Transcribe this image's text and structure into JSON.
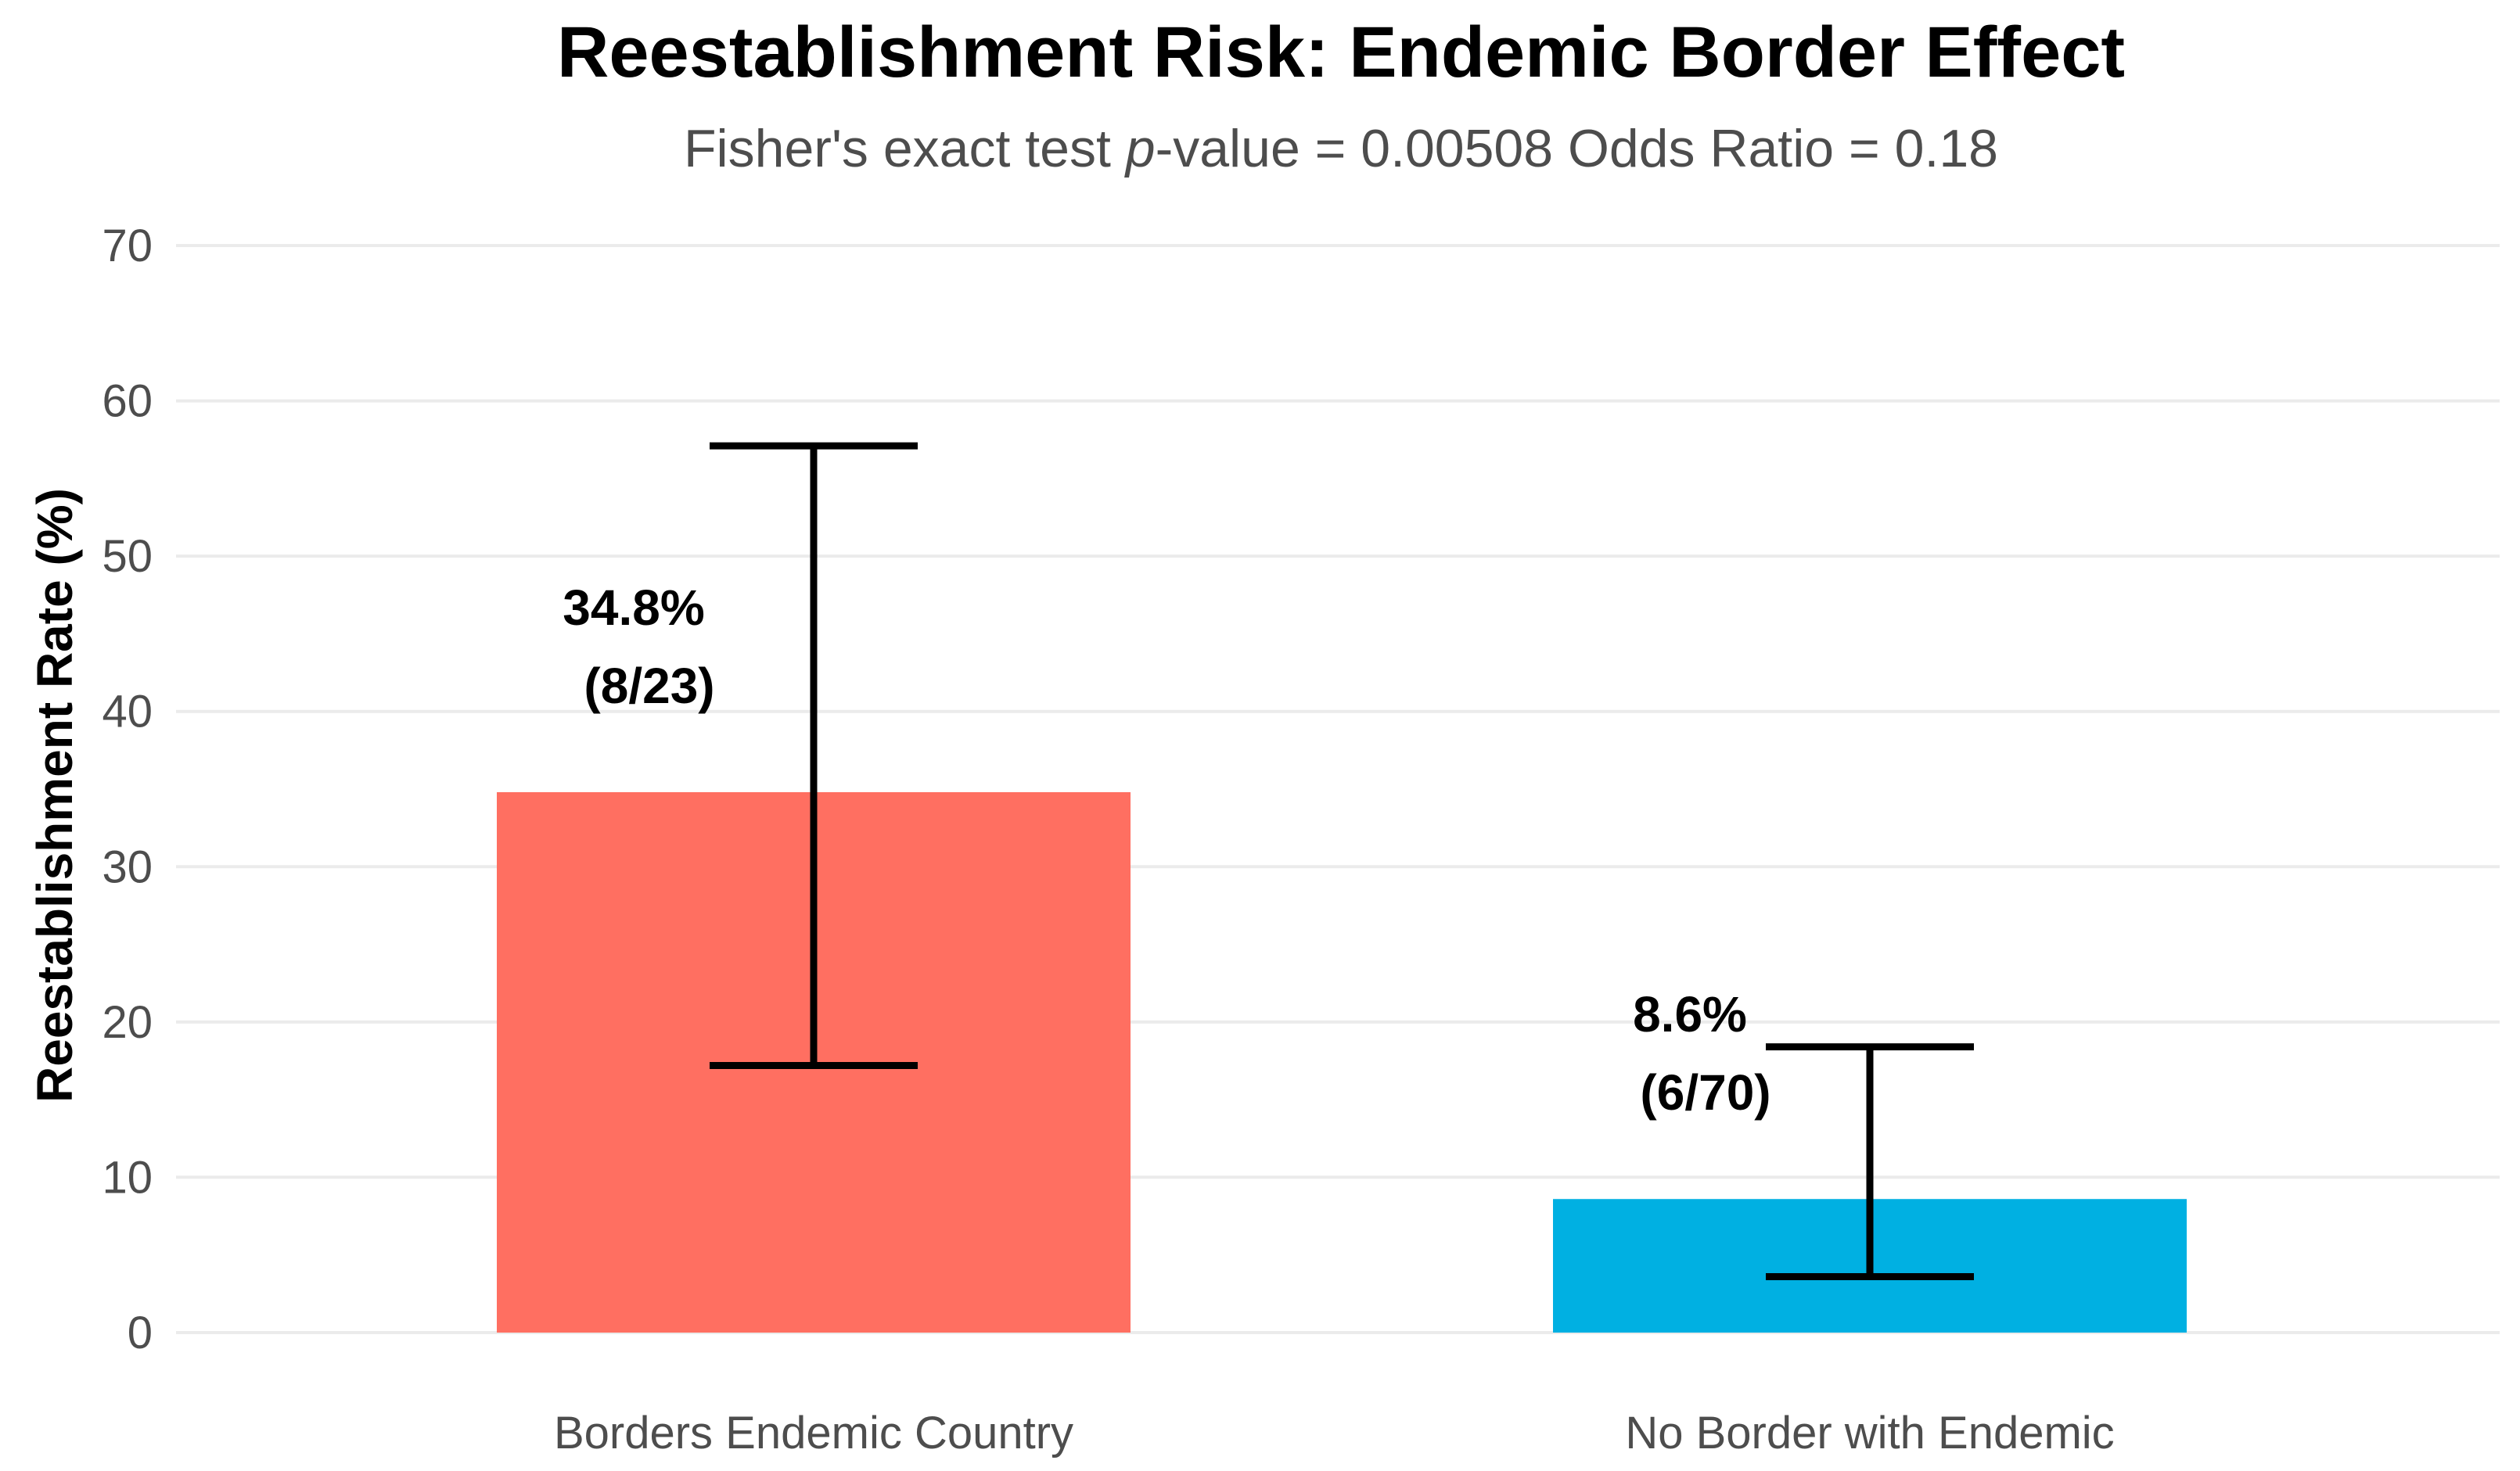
{
  "chart_data": {
    "type": "bar",
    "title": "Reestablishment Risk: Endemic Border Effect",
    "subtitle": {
      "prefix": "Fisher's exact test ",
      "italic": "p",
      "suffix": "-value =  0.00508 Odds Ratio = 0.18"
    },
    "xlabel": "",
    "ylabel": "Reestablishment Rate (%)",
    "ylim": [
      0,
      70
    ],
    "yticks": [
      0,
      10,
      20,
      30,
      40,
      50,
      60,
      70
    ],
    "grid": true,
    "categories": [
      "Borders Endemic Country",
      "No Border with Endemic"
    ],
    "values": [
      34.8,
      8.6
    ],
    "error_low": [
      17.2,
      3.6
    ],
    "error_high": [
      57.1,
      18.4
    ],
    "colors": [
      "#ff6f61",
      "#00b0e2"
    ],
    "labels": [
      {
        "pct": "34.8%",
        "count": "(8/23)"
      },
      {
        "pct": "8.6%",
        "count": "(6/70)"
      }
    ]
  }
}
